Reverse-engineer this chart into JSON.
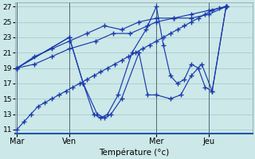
{
  "background_color": "#cce8e8",
  "grid_color": "#aacccc",
  "line_color": "#1a3aad",
  "marker": "+",
  "marker_size": 4,
  "xlabel": "Température (°c)",
  "day_labels": [
    "Mar",
    "Ven",
    "Mer",
    "Jeu"
  ],
  "day_positions": [
    0,
    3,
    8,
    11
  ],
  "ylim_bottom": 10.5,
  "ylim_top": 27.5,
  "yticks": [
    11,
    13,
    15,
    17,
    19,
    21,
    23,
    25,
    27
  ],
  "xlim_left": -0.1,
  "xlim_right": 13.5,
  "lines": [
    {
      "x": [
        0,
        0.4,
        0.8,
        1.2,
        1.6,
        2.0,
        2.4,
        2.8,
        3.2,
        3.6,
        4.0,
        4.4,
        4.8,
        5.2,
        5.6,
        6.0,
        6.4,
        6.8,
        7.2,
        7.6,
        8.0,
        8.4,
        8.8,
        9.2,
        9.6,
        10.0,
        10.4,
        10.8,
        11.2,
        11.6,
        12.0
      ],
      "y": [
        11,
        12,
        13,
        14,
        14.5,
        15,
        15.5,
        16,
        16.5,
        17,
        17.5,
        18,
        18.5,
        19,
        19.5,
        20,
        20.5,
        21,
        21.5,
        22,
        22.5,
        23,
        23.5,
        24,
        24.5,
        25,
        25.5,
        26,
        26.5,
        26.8,
        27
      ]
    },
    {
      "x": [
        0,
        1.0,
        2.0,
        3.0,
        4.5,
        5.5,
        6.5,
        7.5,
        8.0,
        9.0,
        10.0,
        11.0,
        12.0
      ],
      "y": [
        19,
        19.5,
        20.5,
        21.5,
        22.5,
        23.5,
        23.5,
        24.5,
        25.0,
        25.5,
        25.5,
        26.0,
        27.0
      ]
    },
    {
      "x": [
        0,
        1.0,
        2.0,
        3.0,
        4.0,
        5.0,
        6.0,
        7.0,
        8.0,
        9.0,
        10.0,
        11.0,
        12.0
      ],
      "y": [
        19,
        20.5,
        21.5,
        22.5,
        23.5,
        24.5,
        24.0,
        25.0,
        25.5,
        25.5,
        26.0,
        26.5,
        27.0
      ]
    },
    {
      "x": [
        0,
        3.0,
        3.8,
        4.6,
        5.0,
        5.4,
        6.0,
        7.0,
        7.5,
        8.0,
        8.8,
        9.4,
        10.0,
        10.6,
        11.2,
        12.0
      ],
      "y": [
        19,
        23,
        17,
        13,
        12.5,
        13,
        15,
        21,
        15.5,
        15.5,
        15.0,
        15.5,
        18,
        19.5,
        16,
        27
      ]
    },
    {
      "x": [
        0,
        3.0,
        3.8,
        4.4,
        4.8,
        5.2,
        5.8,
        6.6,
        7.4,
        8.0,
        8.4,
        8.8,
        9.2,
        9.6,
        10.0,
        10.4,
        10.8,
        11.2,
        12.0
      ],
      "y": [
        19,
        23,
        17,
        13,
        12.5,
        13,
        15.5,
        21,
        24,
        27,
        22,
        18,
        17,
        17.5,
        19.5,
        19,
        16.5,
        16,
        27
      ]
    }
  ]
}
